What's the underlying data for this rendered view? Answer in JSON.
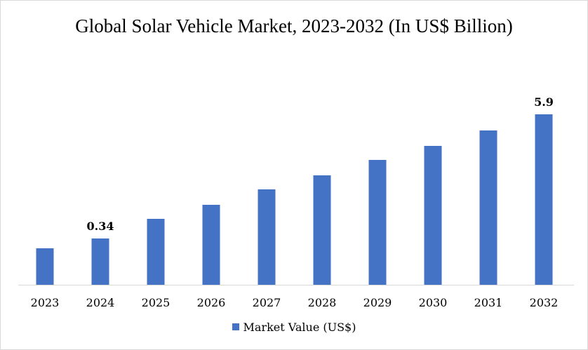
{
  "chart_data": {
    "type": "bar",
    "title": "Global Solar Vehicle Market, 2023-2032 (In US$ Billion)",
    "categories": [
      "2023",
      "2024",
      "2025",
      "2026",
      "2027",
      "2028",
      "2029",
      "2030",
      "2031",
      "2032"
    ],
    "series": [
      {
        "name": "Market Value (US$)",
        "color": "#4472c4",
        "values": [
          0.27,
          0.34,
          0.48,
          0.58,
          0.69,
          0.79,
          0.9,
          1.0,
          1.11,
          5.9
        ]
      }
    ],
    "data_labels": [
      {
        "category": "2024",
        "text": "0.34"
      },
      {
        "category": "2032",
        "text": "5.9"
      }
    ],
    "xlabel": "",
    "ylabel": "",
    "grid": false,
    "legend_position": "bottom"
  }
}
